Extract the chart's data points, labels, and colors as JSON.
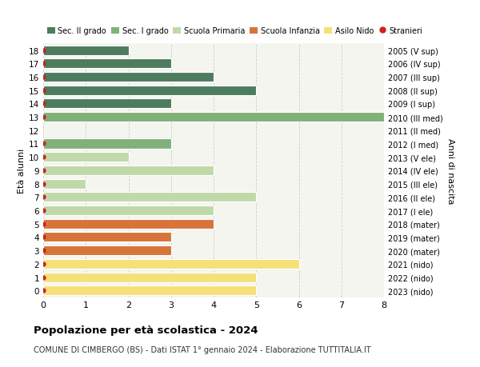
{
  "ages": [
    18,
    17,
    16,
    15,
    14,
    13,
    12,
    11,
    10,
    9,
    8,
    7,
    6,
    5,
    4,
    3,
    2,
    1,
    0
  ],
  "years": [
    "2005 (V sup)",
    "2006 (IV sup)",
    "2007 (III sup)",
    "2008 (II sup)",
    "2009 (I sup)",
    "2010 (III med)",
    "2011 (II med)",
    "2012 (I med)",
    "2013 (V ele)",
    "2014 (IV ele)",
    "2015 (III ele)",
    "2016 (II ele)",
    "2017 (I ele)",
    "2018 (mater)",
    "2019 (mater)",
    "2020 (mater)",
    "2021 (nido)",
    "2022 (nido)",
    "2023 (nido)"
  ],
  "values": [
    2,
    3,
    4,
    5,
    3,
    8,
    0,
    3,
    2,
    4,
    1,
    5,
    4,
    4,
    3,
    3,
    6,
    5,
    5
  ],
  "bar_colors": [
    "#4e7c5f",
    "#4e7c5f",
    "#4e7c5f",
    "#4e7c5f",
    "#4e7c5f",
    "#82b07a",
    "#82b07a",
    "#82b07a",
    "#c0d9a8",
    "#c0d9a8",
    "#c0d9a8",
    "#c0d9a8",
    "#c0d9a8",
    "#d8733a",
    "#d8733a",
    "#d8733a",
    "#f5e07a",
    "#f5e07a",
    "#f5e07a"
  ],
  "legend_labels": [
    "Sec. II grado",
    "Sec. I grado",
    "Scuola Primaria",
    "Scuola Infanzia",
    "Asilo Nido",
    "Stranieri"
  ],
  "legend_colors": [
    "#4e7c5f",
    "#82b07a",
    "#c0d9a8",
    "#d8733a",
    "#f5e07a",
    "#cc2222"
  ],
  "stranieri_dots": [
    true,
    true,
    true,
    true,
    true,
    true,
    false,
    true,
    true,
    true,
    true,
    true,
    true,
    true,
    true,
    true,
    true,
    true,
    true
  ],
  "title": "Popolazione per età scolastica - 2024",
  "subtitle": "COMUNE DI CIMBERGO (BS) - Dati ISTAT 1° gennaio 2024 - Elaborazione TUTTITALIA.IT",
  "ylabel_left": "Età alunni",
  "ylabel_right": "Anni di nascita",
  "xlim": [
    0,
    8
  ],
  "xticks": [
    0,
    1,
    2,
    3,
    4,
    5,
    6,
    7,
    8
  ],
  "bar_height": 0.72,
  "background_color": "#ffffff",
  "grid_color": "#cccccc",
  "plot_bg": "#f5f5f0"
}
